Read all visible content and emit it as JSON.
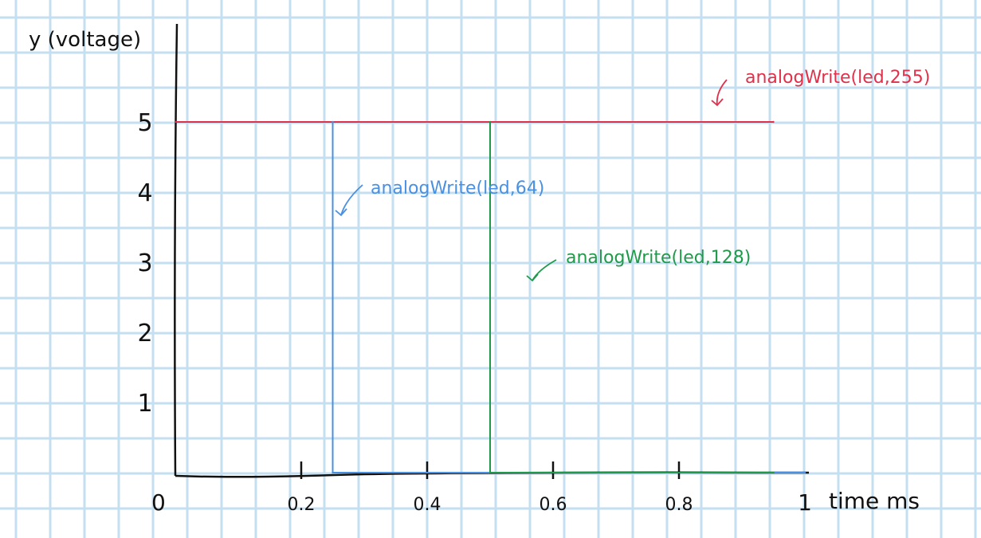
{
  "chart_data": {
    "type": "line",
    "ylabel": "y (voltage)",
    "xlabel": "time ms",
    "origin_label": "0",
    "xlim": [
      0,
      1
    ],
    "ylim": [
      0,
      5
    ],
    "x_ticks": [
      {
        "value": 0.2,
        "label": "0.2"
      },
      {
        "value": 0.4,
        "label": "0.4"
      },
      {
        "value": 0.6,
        "label": "0.6"
      },
      {
        "value": 0.8,
        "label": "0.8"
      },
      {
        "value": 1,
        "label": "1"
      }
    ],
    "y_ticks": [
      {
        "value": 1,
        "label": "1"
      },
      {
        "value": 2,
        "label": "2"
      },
      {
        "value": 3,
        "label": "3"
      },
      {
        "value": 4,
        "label": "4"
      },
      {
        "value": 5,
        "label": "5"
      }
    ],
    "grid": true,
    "series": [
      {
        "name": "analogWrite(led,255)",
        "color": "#e0304a",
        "points": [
          [
            0,
            5
          ],
          [
            0.95,
            5
          ]
        ]
      },
      {
        "name": "analogWrite(led,64)",
        "color": "#4a90e2",
        "points": [
          [
            0.25,
            5
          ],
          [
            0.25,
            0
          ],
          [
            1.0,
            0
          ]
        ]
      },
      {
        "name": "analogWrite(led,128)",
        "color": "#1f9a4a",
        "points": [
          [
            0.5,
            5
          ],
          [
            0.5,
            0
          ],
          [
            0.95,
            0
          ]
        ]
      }
    ],
    "annotations": [
      {
        "text": "analogWrite(led,255)",
        "series": 0
      },
      {
        "text": "analogWrite(led,64)",
        "series": 1
      },
      {
        "text": "analogWrite(led,128)",
        "series": 2
      }
    ]
  }
}
